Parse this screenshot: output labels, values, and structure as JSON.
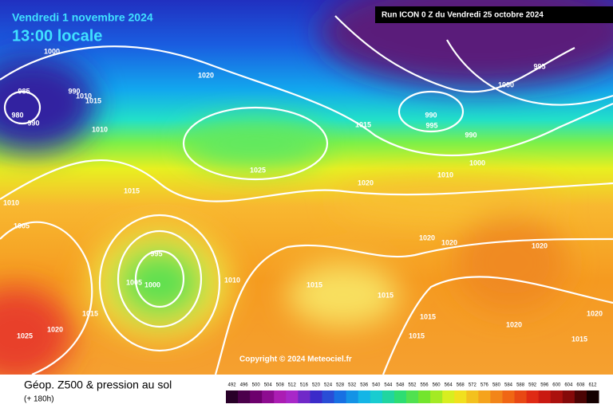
{
  "header": {
    "date": "Vendredi 1 novembre 2024",
    "time": "13:00 locale",
    "run": "Run ICON 0 Z du Vendredi 25 octobre 2024"
  },
  "isobar_labels": [
    1000,
    985,
    980,
    990,
    990,
    1010,
    1015,
    1010,
    1020,
    1015,
    990,
    995,
    995,
    1000,
    990,
    1000,
    1010,
    1025,
    1020,
    1015,
    1010,
    1005,
    1020,
    1020,
    1020,
    995,
    1005,
    1000,
    1010,
    1015,
    1015,
    1015,
    1015,
    1020,
    1025,
    1015,
    1020,
    1020,
    1015
  ],
  "copyright": "Copyright © 2024 Meteociel.fr",
  "legend": {
    "title": "Géop. Z500 & pression au sol",
    "subtitle": "(+ 180h)",
    "ticks": [
      492,
      496,
      500,
      504,
      508,
      512,
      516,
      520,
      524,
      528,
      532,
      536,
      540,
      544,
      548,
      552,
      556,
      560,
      564,
      568,
      572,
      576,
      580,
      584,
      588,
      592,
      596,
      600,
      604,
      608,
      612
    ]
  }
}
